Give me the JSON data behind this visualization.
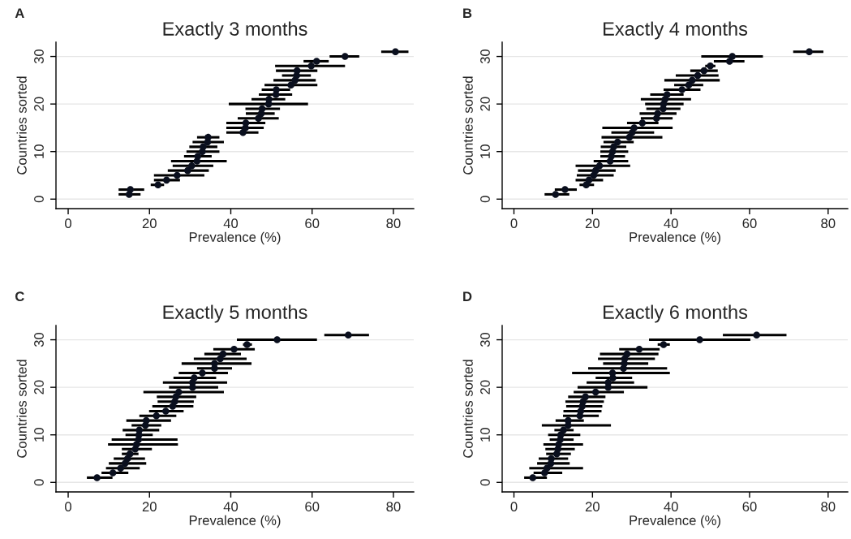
{
  "chart_data": [
    {
      "type": "scatter",
      "title": "Exactly 3 months",
      "xlabel": "Prevalence (%)",
      "ylabel": "Countries sorted",
      "annotations": [
        "A"
      ],
      "grid": "y",
      "marker": "circle",
      "xlim": [
        -3,
        85
      ],
      "ylim": [
        -2,
        33
      ],
      "xticks": [
        0,
        20,
        40,
        60,
        80
      ],
      "yticks": [
        0,
        10,
        20,
        30
      ],
      "series": [
        {
          "color": "#0a0f1e",
          "x": [
            15.0,
            15.3,
            22.1,
            24.2,
            26.8,
            29.4,
            30.4,
            31.7,
            31.9,
            33.0,
            33.2,
            34.3,
            34.4,
            43.0,
            43.6,
            43.7,
            46.8,
            47.5,
            47.7,
            49.3,
            49.4,
            51.1,
            51.2,
            54.8,
            55.8,
            56.2,
            56.3,
            59.8,
            61.1,
            68.1,
            80.5
          ],
          "values": [
            1,
            2,
            3,
            4,
            5,
            6,
            7,
            8,
            9,
            10,
            11,
            12,
            13,
            14,
            15,
            16,
            17,
            18,
            19,
            20,
            21,
            22,
            23,
            24,
            25,
            26,
            27,
            28,
            29,
            30,
            31
          ],
          "xerrors": [
            [
              12.4,
              17.8
            ],
            [
              12.4,
              18.7
            ],
            [
              20.3,
              23.6
            ],
            [
              21.1,
              27.5
            ],
            [
              21.1,
              33.5
            ],
            [
              24.5,
              34.6
            ],
            [
              25.7,
              35.7
            ],
            [
              25.3,
              39.0
            ],
            [
              28.5,
              35.3
            ],
            [
              29.1,
              37.2
            ],
            [
              29.8,
              36.7
            ],
            [
              30.6,
              38.3
            ],
            [
              31.7,
              37.2
            ],
            [
              38.9,
              46.8
            ],
            [
              38.9,
              48.1
            ],
            [
              38.9,
              48.5
            ],
            [
              41.7,
              51.8
            ],
            [
              43.7,
              50.8
            ],
            [
              43.6,
              52.1
            ],
            [
              39.5,
              59.0
            ],
            [
              45.1,
              53.4
            ],
            [
              46.9,
              55.1
            ],
            [
              47.6,
              54.6
            ],
            [
              48.3,
              61.3
            ],
            [
              50.5,
              60.9
            ],
            [
              52.6,
              59.7
            ],
            [
              51.1,
              61.3
            ],
            [
              50.9,
              68.1
            ],
            [
              57.9,
              64.1
            ],
            [
              64.3,
              71.6
            ],
            [
              77.0,
              83.7
            ]
          ]
        }
      ]
    },
    {
      "type": "scatter",
      "title": "Exactly 4 months",
      "xlabel": "Prevalence (%)",
      "ylabel": "Countries sorted",
      "annotations": [
        "B"
      ],
      "grid": "y",
      "marker": "circle",
      "xlim": [
        -3,
        85
      ],
      "ylim": [
        -2,
        33
      ],
      "xticks": [
        0,
        20,
        40,
        60,
        80
      ],
      "yticks": [
        0,
        10,
        20,
        30
      ],
      "series": [
        {
          "color": "#0a0f1e",
          "x": [
            10.6,
            13.0,
            18.4,
            19.1,
            20.3,
            20.8,
            21.8,
            24.5,
            24.8,
            25.1,
            25.4,
            26.4,
            29.4,
            30.1,
            30.6,
            32.7,
            36.3,
            36.6,
            38.0,
            38.1,
            38.5,
            39.0,
            42.8,
            44.5,
            45.4,
            46.8,
            48.4,
            50.0,
            54.9,
            55.6,
            75.2
          ],
          "values": [
            1,
            2,
            3,
            4,
            5,
            6,
            7,
            8,
            9,
            10,
            11,
            12,
            13,
            14,
            15,
            16,
            17,
            18,
            19,
            20,
            21,
            22,
            23,
            24,
            25,
            26,
            27,
            28,
            29,
            30,
            31
          ],
          "xerrors": [
            [
              7.8,
              14.1
            ],
            [
              10.4,
              16.0
            ],
            [
              16.7,
              20.4
            ],
            [
              15.7,
              22.7
            ],
            [
              16.0,
              25.4
            ],
            [
              16.3,
              25.9
            ],
            [
              15.7,
              29.6
            ],
            [
              20.3,
              29.1
            ],
            [
              22.0,
              28.3
            ],
            [
              22.0,
              29.1
            ],
            [
              22.1,
              28.6
            ],
            [
              22.8,
              30.5
            ],
            [
              22.3,
              37.8
            ],
            [
              24.8,
              35.7
            ],
            [
              22.5,
              40.4
            ],
            [
              28.8,
              36.8
            ],
            [
              32.3,
              40.4
            ],
            [
              32.0,
              41.4
            ],
            [
              33.7,
              42.4
            ],
            [
              33.4,
              43.2
            ],
            [
              32.3,
              45.1
            ],
            [
              34.7,
              43.2
            ],
            [
              38.1,
              47.5
            ],
            [
              40.8,
              48.2
            ],
            [
              38.3,
              52.4
            ],
            [
              41.2,
              52.1
            ],
            [
              44.9,
              51.9
            ],
            [
              48.7,
              51.3
            ],
            [
              50.9,
              58.7
            ],
            [
              47.7,
              63.4
            ],
            [
              71.1,
              78.8
            ]
          ]
        }
      ]
    },
    {
      "type": "scatter",
      "title": "Exactly 5 months",
      "xlabel": "Prevalence (%)",
      "ylabel": "Countries sorted",
      "annotations": [
        "C"
      ],
      "grid": "y",
      "marker": "circle",
      "xlim": [
        -3,
        85
      ],
      "ylim": [
        -2,
        33
      ],
      "xticks": [
        0,
        20,
        40,
        60,
        80
      ],
      "yticks": [
        0,
        10,
        20,
        30
      ],
      "series": [
        {
          "color": "#0a0f1e",
          "x": [
            7.1,
            11.0,
            12.9,
            14.0,
            14.6,
            15.2,
            16.5,
            16.8,
            17.3,
            17.4,
            17.5,
            19.0,
            19.2,
            21.7,
            24.0,
            25.7,
            26.2,
            26.5,
            27.2,
            30.6,
            30.6,
            31.0,
            33.0,
            36.0,
            36.0,
            37.4,
            38.1,
            40.8,
            44.0,
            51.4,
            68.9
          ],
          "values": [
            1,
            2,
            3,
            4,
            5,
            6,
            7,
            8,
            9,
            10,
            11,
            12,
            13,
            14,
            15,
            16,
            17,
            18,
            19,
            20,
            21,
            22,
            23,
            24,
            25,
            26,
            27,
            28,
            29,
            30,
            31
          ],
          "xerrors": [
            [
              4.6,
              10.9
            ],
            [
              8.2,
              14.8
            ],
            [
              9.3,
              17.6
            ],
            [
              10.0,
              19.2
            ],
            [
              11.2,
              18.9
            ],
            [
              13.2,
              17.3
            ],
            [
              13.2,
              20.6
            ],
            [
              9.8,
              27.0
            ],
            [
              10.7,
              26.9
            ],
            [
              14.1,
              20.8
            ],
            [
              13.4,
              22.4
            ],
            [
              15.6,
              22.9
            ],
            [
              14.3,
              25.3
            ],
            [
              17.5,
              26.6
            ],
            [
              19.9,
              28.4
            ],
            [
              20.7,
              30.8
            ],
            [
              22.0,
              30.9
            ],
            [
              21.8,
              31.5
            ],
            [
              18.5,
              38.3
            ],
            [
              24.8,
              36.9
            ],
            [
              23.3,
              39.1
            ],
            [
              25.9,
              36.4
            ],
            [
              27.2,
              39.3
            ],
            [
              31.7,
              40.3
            ],
            [
              27.9,
              45.1
            ],
            [
              30.9,
              43.9
            ],
            [
              33.5,
              42.5
            ],
            [
              35.7,
              45.9
            ],
            [
              43.0,
              45.2
            ],
            [
              41.5,
              61.2
            ],
            [
              63.0,
              74.0
            ]
          ]
        }
      ]
    },
    {
      "type": "scatter",
      "title": "Exactly 6 months",
      "xlabel": "Prevalence (%)",
      "ylabel": "Countries sorted",
      "annotations": [
        "D"
      ],
      "grid": "y",
      "marker": "circle",
      "xlim": [
        -3,
        85
      ],
      "ylim": [
        -2,
        33
      ],
      "xticks": [
        0,
        20,
        40,
        60,
        80
      ],
      "yticks": [
        0,
        10,
        20,
        30
      ],
      "series": [
        {
          "color": "#0a0f1e",
          "x": [
            4.8,
            7.8,
            8.4,
            9.4,
            9.5,
            10.9,
            11.2,
            11.4,
            11.8,
            11.9,
            12.6,
            13.8,
            13.8,
            16.8,
            17.0,
            17.4,
            17.6,
            18.2,
            20.8,
            24.0,
            24.0,
            25.2,
            25.1,
            27.9,
            28.1,
            28.2,
            28.8,
            31.9,
            38.1,
            47.3,
            61.8
          ],
          "values": [
            1,
            2,
            3,
            4,
            5,
            6,
            7,
            8,
            9,
            10,
            11,
            12,
            13,
            14,
            15,
            16,
            17,
            18,
            19,
            20,
            21,
            22,
            23,
            24,
            25,
            26,
            27,
            28,
            29,
            30,
            31
          ],
          "xerrors": [
            [
              2.6,
              8.4
            ],
            [
              5.0,
              12.3
            ],
            [
              3.9,
              17.6
            ],
            [
              5.9,
              14.2
            ],
            [
              6.3,
              13.8
            ],
            [
              8.2,
              14.5
            ],
            [
              8.0,
              15.5
            ],
            [
              7.5,
              17.6
            ],
            [
              9.1,
              15.2
            ],
            [
              8.7,
              16.9
            ],
            [
              10.3,
              15.2
            ],
            [
              7.1,
              24.7
            ],
            [
              10.6,
              17.8
            ],
            [
              12.5,
              21.6
            ],
            [
              12.6,
              22.3
            ],
            [
              13.3,
              22.5
            ],
            [
              13.1,
              22.9
            ],
            [
              13.8,
              23.3
            ],
            [
              15.2,
              28.0
            ],
            [
              16.2,
              34.0
            ],
            [
              18.5,
              30.6
            ],
            [
              20.8,
              30.1
            ],
            [
              14.8,
              39.7
            ],
            [
              18.9,
              39.0
            ],
            [
              22.7,
              34.2
            ],
            [
              21.4,
              35.9
            ],
            [
              21.9,
              36.8
            ],
            [
              26.8,
              37.1
            ],
            [
              36.6,
              39.7
            ],
            [
              34.4,
              60.2
            ],
            [
              53.2,
              69.4
            ]
          ]
        }
      ]
    }
  ]
}
